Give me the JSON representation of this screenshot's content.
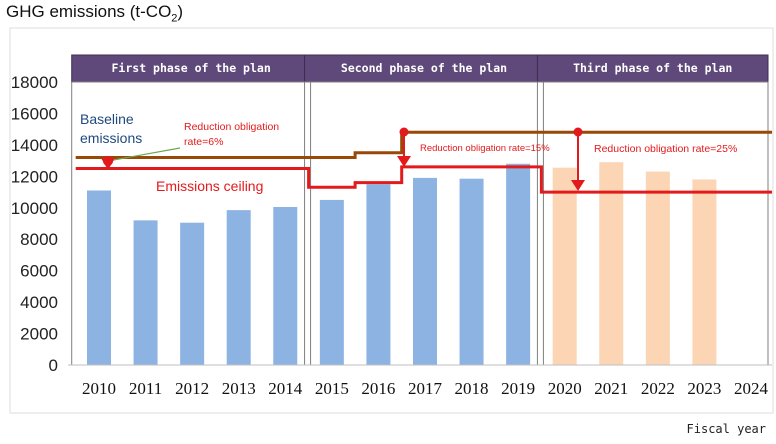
{
  "title": "GHG emissions (t-CO",
  "title_sub": "2",
  "title_end": ")",
  "x_axis_label": "Fiscal year",
  "phases": [
    {
      "label": "First phase of the plan"
    },
    {
      "label": "Second phase of the plan"
    },
    {
      "label": "Third phase of the plan"
    }
  ],
  "annotations": {
    "baseline": [
      "Baseline",
      "emissions"
    ],
    "ceiling": "Emissions ceiling",
    "rate1": [
      "Reduction obligation",
      "rate=6%"
    ],
    "rate2": "Reduction obligation rate=15%",
    "rate3": "Reduction obligation rate=25%"
  },
  "colors": {
    "bar_blue": "#8db3e2",
    "bar_peach": "#fcd5b4",
    "baseline_line": "#984807",
    "ceiling_line": "#e31a1c",
    "phase_banner": "#5f497a",
    "annotation_red": "#e31a1c",
    "annotation_blue": "#1f497d"
  },
  "chart_data": {
    "type": "bar",
    "title": "GHG emissions (t-CO2)",
    "xlabel": "Fiscal year",
    "ylabel": "",
    "ylim": [
      0,
      18000
    ],
    "yticks": [
      0,
      2000,
      4000,
      6000,
      8000,
      10000,
      12000,
      14000,
      16000,
      18000
    ],
    "categories": [
      "2010",
      "2011",
      "2012",
      "2013",
      "2014",
      "2015",
      "2016",
      "2017",
      "2018",
      "2019",
      "2020",
      "2021",
      "2022",
      "2023",
      "2024"
    ],
    "series": [
      {
        "values": [
          11100,
          9200,
          9050,
          9850,
          10050,
          10500,
          11500,
          11900,
          11850,
          12800,
          12550,
          12900,
          12300,
          11800,
          null
        ],
        "colors": [
          "blue",
          "blue",
          "blue",
          "blue",
          "blue",
          "blue",
          "blue",
          "blue",
          "blue",
          "blue",
          "peach",
          "peach",
          "peach",
          "peach",
          "peach"
        ]
      }
    ],
    "baseline_emissions": [
      {
        "from": 2009.5,
        "to": 2014.5,
        "value": 13200
      },
      {
        "from": 2014.5,
        "to": 2015.5,
        "value": 13200
      },
      {
        "from": 2015.5,
        "to": 2016.5,
        "value": 13500
      },
      {
        "from": 2016.5,
        "to": 2024.5,
        "value": 14800
      }
    ],
    "emissions_ceiling": [
      {
        "from": 2009.5,
        "to": 2014.5,
        "value": 12500
      },
      {
        "from": 2014.5,
        "to": 2015.5,
        "value": 11300
      },
      {
        "from": 2015.5,
        "to": 2016.5,
        "value": 11600
      },
      {
        "from": 2016.5,
        "to": 2019.5,
        "value": 12600
      },
      {
        "from": 2019.5,
        "to": 2024.5,
        "value": 11000
      }
    ],
    "grid": false
  }
}
